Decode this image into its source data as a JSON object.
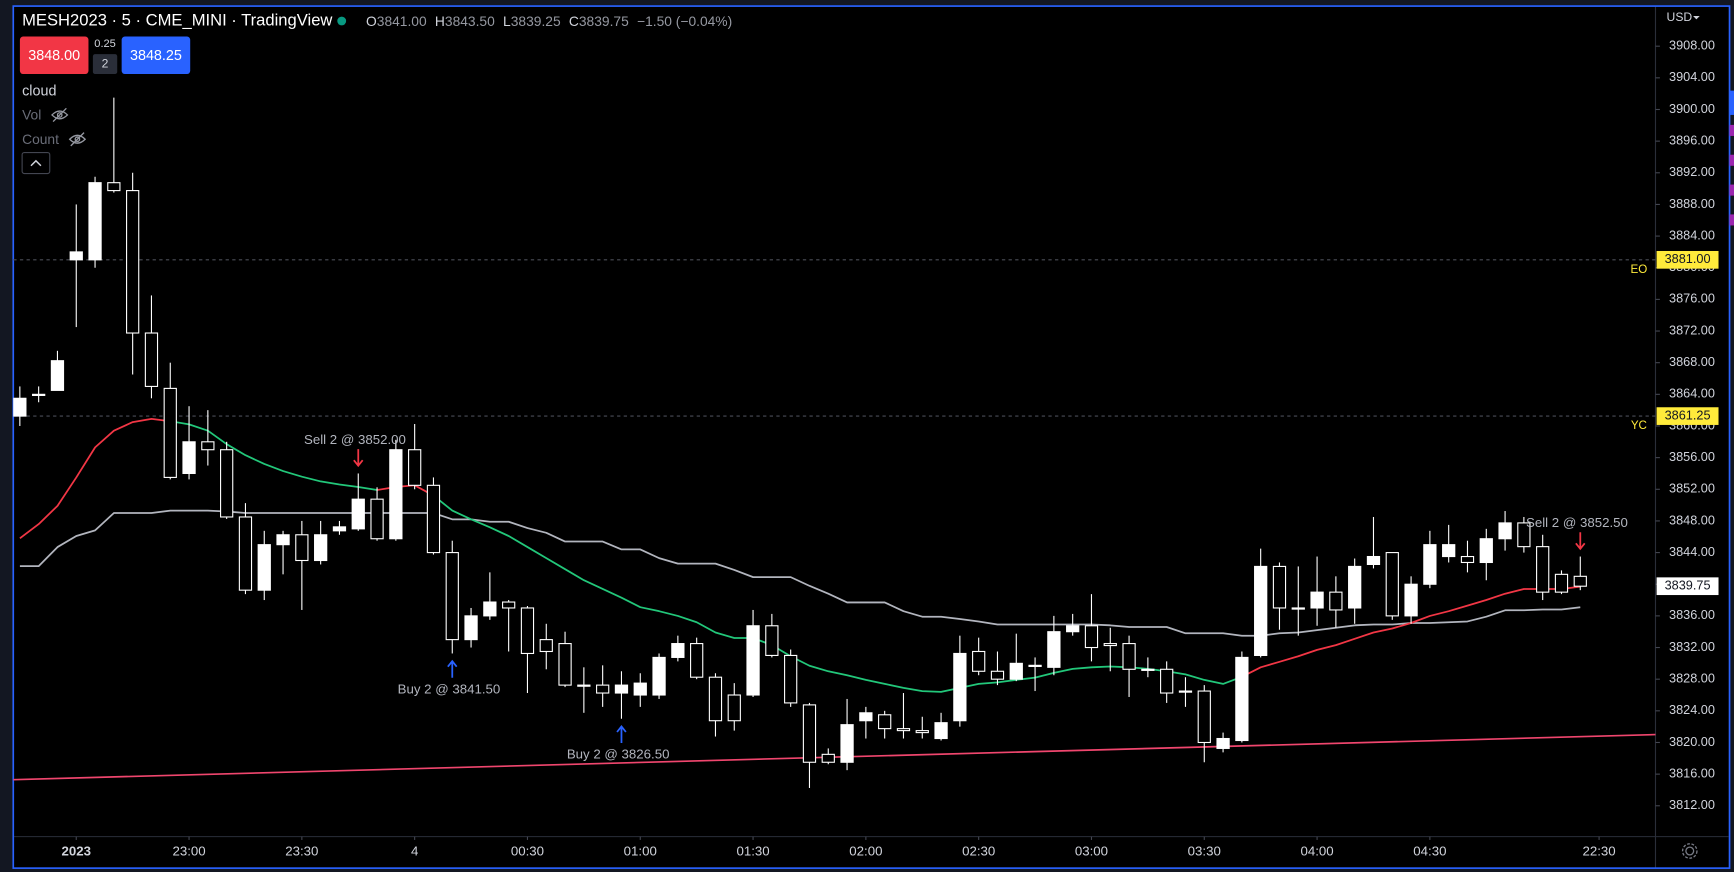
{
  "header": {
    "symbol": "MESH2023 · 5 · CME_MINI · TradingView",
    "ohlc": [
      {
        "key": "O",
        "value": "3841.00"
      },
      {
        "key": "H",
        "value": "3843.50"
      },
      {
        "key": "L",
        "value": "3839.25"
      },
      {
        "key": "C",
        "value": "3839.75"
      }
    ],
    "change": "−1.50 (−0.04%)",
    "bid": "3848.00",
    "spread": "0.25",
    "quantity": "2",
    "ask": "3848.25",
    "currency": "USD"
  },
  "legend": {
    "items": [
      "cloud",
      "Vol",
      "Count"
    ]
  },
  "chart_data": {
    "type": "candlestick",
    "open": [
      3861.25,
      3864,
      3864.5,
      3881,
      3881,
      3890.75,
      3889.75,
      3871.75,
      3864.75,
      3854,
      3858,
      3857,
      3848.5,
      3839.25,
      3845,
      3846.25,
      3843,
      3846.75,
      3847,
      3850.75,
      3845.75,
      3857,
      3852.5,
      3844,
      3833,
      3836,
      3837.75,
      3837,
      3833,
      3832.5,
      3827.25,
      3827.25,
      3826.25,
      3826,
      3826,
      3830.75,
      3832.5,
      3828.25,
      3826,
      3826,
      3834.75,
      3831,
      3824.75,
      3818.5,
      3817.5,
      3822.75,
      3823.5,
      3821.75,
      3821.5,
      3820.5,
      3822.75,
      3831.5,
      3829,
      3828,
      3829.75,
      3829.5,
      3834,
      3834.75,
      3832.5,
      3832.5,
      3829.25,
      3829.25,
      3826.5,
      3826.5,
      3819.25,
      3820.25,
      3831,
      3842.25,
      3837,
      3837,
      3839,
      3837,
      3842.5,
      3844,
      3836,
      3840,
      3843.5,
      3843.5,
      3842.75,
      3845.75,
      3847.75,
      3844.75,
      3841.25,
      3841
    ],
    "high": [
      3865,
      3865,
      3869.5,
      3888,
      3891.5,
      3901.5,
      3892,
      3876.5,
      3868,
      3862.5,
      3862,
      3858,
      3850.25,
      3846.75,
      3846.75,
      3848,
      3848,
      3848,
      3854,
      3852.25,
      3858.25,
      3860.25,
      3853.5,
      3845.5,
      3837,
      3841.5,
      3838,
      3837.25,
      3835,
      3834,
      3829.5,
      3829.75,
      3829,
      3828.75,
      3831.25,
      3833.5,
      3833.25,
      3828.75,
      3827.5,
      3836.75,
      3836.25,
      3831.75,
      3825,
      3819.25,
      3825.5,
      3824.5,
      3824,
      3826.25,
      3823.25,
      3823.75,
      3833.5,
      3833.25,
      3831.5,
      3833.75,
      3830.75,
      3836,
      3836.25,
      3838.75,
      3834.5,
      3833.5,
      3830.75,
      3830.25,
      3828.25,
      3827.25,
      3821.25,
      3831.5,
      3844.5,
      3842.75,
      3842.25,
      3843.5,
      3841,
      3843.25,
      3848.5,
      3844,
      3841,
      3846.75,
      3847.5,
      3845.5,
      3847,
      3849.25,
      3848.5,
      3846.25,
      3841.75,
      3843.5
    ],
    "low": [
      3860,
      3863,
      3864.5,
      3872.5,
      3880,
      3889.5,
      3866.5,
      3863.5,
      3853.25,
      3853.25,
      3855,
      3848.25,
      3838.75,
      3838,
      3841.25,
      3836.75,
      3842.5,
      3846.25,
      3846.75,
      3845.5,
      3845.5,
      3852,
      3843.75,
      3831.25,
      3832,
      3835.5,
      3831.5,
      3826.25,
      3829.25,
      3827,
      3823.75,
      3824.5,
      3823,
      3824.5,
      3825.5,
      3830.25,
      3828,
      3820.75,
      3821.5,
      3825.75,
      3830.75,
      3824.5,
      3814.25,
      3817.25,
      3816.5,
      3820.5,
      3820.5,
      3820.5,
      3820.5,
      3820.25,
      3822,
      3828.5,
      3827.25,
      3827.75,
      3826.5,
      3828.5,
      3833.5,
      3830.25,
      3829,
      3825.75,
      3828.25,
      3825,
      3824.5,
      3817.5,
      3818.75,
      3820,
      3830.75,
      3834.25,
      3833.5,
      3834.75,
      3834.5,
      3835,
      3842,
      3835.5,
      3835,
      3839.5,
      3842.75,
      3841.5,
      3840.5,
      3844.25,
      3844,
      3838,
      3838.75,
      3839.25
    ],
    "close": [
      3863.5,
      3864,
      3868.25,
      3882,
      3890.75,
      3889.75,
      3871.75,
      3865,
      3853.5,
      3858,
      3857,
      3848.5,
      3839.25,
      3845,
      3846.25,
      3843,
      3846.25,
      3847.25,
      3850.75,
      3845.75,
      3857,
      3852.5,
      3844,
      3833,
      3836,
      3837.75,
      3837,
      3831.25,
      3831.5,
      3827.25,
      3827.25,
      3826.25,
      3827.25,
      3827.5,
      3830.75,
      3832.5,
      3828.25,
      3822.75,
      3822.75,
      3834.75,
      3831,
      3825,
      3817.5,
      3817.5,
      3822.25,
      3823.75,
      3821.75,
      3821.5,
      3821.25,
      3822.5,
      3831.25,
      3829,
      3828,
      3830,
      3829.75,
      3834,
      3834.75,
      3832,
      3832.25,
      3829.25,
      3829.25,
      3826.25,
      3826.5,
      3820,
      3820.5,
      3830.75,
      3842.25,
      3837,
      3837,
      3839,
      3836.75,
      3842.25,
      3843.5,
      3836,
      3840,
      3845,
      3845,
      3842.75,
      3845.75,
      3847.75,
      3844.75,
      3839,
      3839,
      3839.75
    ],
    "up_color": "#ffffff",
    "down_color": "#000000",
    "border_color": "#ffffff",
    "lines": [
      {
        "color": "#b2b5be",
        "values": [
          3842.3,
          3842.3,
          3844.7,
          3846.1,
          3846.8,
          3849,
          3849,
          3849,
          3849.3,
          3849.3,
          3849.3,
          3849.2,
          3849,
          3849,
          3849,
          3849,
          3849,
          3849,
          3849,
          3849,
          3849,
          3849,
          3849,
          3848.2,
          3848.2,
          3847.9,
          3847.9,
          3847.1,
          3846.5,
          3845.4,
          3845.4,
          3845.4,
          3844.4,
          3844.4,
          3843.3,
          3842.6,
          3842.6,
          3842.6,
          3841.8,
          3840.9,
          3840.9,
          3840.9,
          3839.8,
          3838.8,
          3837.7,
          3837.7,
          3837.7,
          3836.6,
          3835.9,
          3835.9,
          3835.6,
          3835.3,
          3834.9,
          3834.9,
          3834.9,
          3834.9,
          3834.9,
          3834.9,
          3834.8,
          3834.6,
          3834.6,
          3834.6,
          3833.8,
          3833.8,
          3833.8,
          3833.5,
          3833.5,
          3833.8,
          3833.9,
          3834.2,
          3834.5,
          3834.8,
          3834.9,
          3834.9,
          3835.1,
          3835.1,
          3835.2,
          3835.3,
          3835.9,
          3836.7,
          3836.7,
          3836.8,
          3836.8,
          3837.1
        ]
      },
      {
        "color": "#f23645",
        "values": [
          3845.8,
          3847.6,
          3849.9,
          3853.5,
          3857.3,
          3859.4,
          3860.5,
          3860.9,
          3860.6,
          null,
          null,
          null,
          null,
          null,
          null,
          null,
          null,
          null,
          null,
          3851.9,
          3852.3,
          3852.5,
          3851.2,
          null,
          null,
          null,
          null,
          null,
          null,
          null,
          null,
          null,
          null,
          null,
          null,
          null,
          null,
          null,
          null,
          null,
          null,
          null,
          null,
          null,
          null,
          null,
          null,
          null,
          null,
          null,
          null,
          null,
          null,
          null,
          null,
          null,
          null,
          null,
          null,
          null,
          null,
          null,
          null,
          null,
          null,
          3828.3,
          3829.5,
          3830.2,
          3830.9,
          3831.7,
          3832.3,
          3833.1,
          3833.9,
          3834.4,
          3835.1,
          3836.0,
          3836.6,
          3837.3,
          3838.0,
          3838.8,
          3839.4,
          3839.4,
          3839.4,
          3839.7
        ]
      },
      {
        "color": "#22c77a",
        "values": [
          null,
          null,
          null,
          null,
          null,
          null,
          null,
          null,
          3860.6,
          3860.2,
          3859.4,
          3857.7,
          3856.3,
          3855.2,
          3854.3,
          3853.6,
          3853.0,
          3852.6,
          3852.3,
          3851.9,
          null,
          null,
          3851.2,
          3849.3,
          3848.2,
          3847.2,
          3846.1,
          3844.7,
          3843.3,
          3841.9,
          3840.5,
          3839.4,
          3838.3,
          3837.1,
          3836.6,
          3836.0,
          3835.2,
          3833.9,
          3833.2,
          3833.2,
          3832.3,
          3830.9,
          3829.7,
          3829.0,
          3828.5,
          3827.9,
          3827.4,
          3826.9,
          3826.5,
          3826.4,
          3826.9,
          3827.4,
          3827.6,
          3827.9,
          3828.2,
          3828.8,
          3829.3,
          3829.5,
          3829.6,
          3829.5,
          3829.3,
          3829.0,
          3828.6,
          3827.9,
          3827.4,
          3828.3,
          null,
          null,
          null,
          null,
          null,
          null,
          null,
          null,
          null,
          null,
          null,
          null,
          null,
          null,
          null,
          null,
          null,
          null
        ]
      }
    ],
    "trendline": {
      "color": "#f0466e",
      "values": [
        3815.3,
        3821.0
      ]
    },
    "price_lines": [
      {
        "value": 3881,
        "label": "3881.00",
        "tag": "EO"
      },
      {
        "value": 3861.25,
        "label": "3861.25",
        "tag": "YC"
      }
    ],
    "last_price": {
      "value": 3839.75,
      "label": "3839.75"
    },
    "annotations": [
      {
        "index": 18,
        "text": "Sell 2 @ 3852.00",
        "direction": "down",
        "color": "#f23645"
      },
      {
        "index": 23,
        "text": "Buy 2 @ 3841.50",
        "direction": "up",
        "color": "#2962ff"
      },
      {
        "index": 32,
        "text": "Buy 2 @ 3826.50",
        "direction": "up",
        "color": "#2962ff"
      },
      {
        "index": 83,
        "text": "Sell 2 @ 3852.50",
        "direction": "down",
        "color": "#f23645"
      }
    ],
    "xlim": [
      -0.35,
      87
    ],
    "xticks": [
      {
        "value": 3,
        "label": "2023"
      },
      {
        "value": 9,
        "label": "23:00"
      },
      {
        "value": 15,
        "label": "23:30"
      },
      {
        "value": 21,
        "label": "4"
      },
      {
        "value": 27,
        "label": "00:30"
      },
      {
        "value": 33,
        "label": "01:00"
      },
      {
        "value": 39,
        "label": "01:30"
      },
      {
        "value": 45,
        "label": "02:00"
      },
      {
        "value": 51,
        "label": "02:30"
      },
      {
        "value": 57,
        "label": "03:00"
      },
      {
        "value": 63,
        "label": "03:30"
      },
      {
        "value": 69,
        "label": "04:00"
      },
      {
        "value": 75,
        "label": "04:30"
      },
      {
        "value": 84,
        "label": "22:30"
      }
    ],
    "ylim": [
      3808.1,
      3913.0
    ],
    "yticks": [
      {
        "value": 3812,
        "label": "3812.00"
      },
      {
        "value": 3816,
        "label": "3816.00"
      },
      {
        "value": 3820,
        "label": "3820.00"
      },
      {
        "value": 3824,
        "label": "3824.00"
      },
      {
        "value": 3828,
        "label": "3828.00"
      },
      {
        "value": 3832,
        "label": "3832.00"
      },
      {
        "value": 3836,
        "label": "3836.00"
      },
      {
        "value": 3840,
        "label": "3840.00"
      },
      {
        "value": 3844,
        "label": "3844.00"
      },
      {
        "value": 3848,
        "label": "3848.00"
      },
      {
        "value": 3852,
        "label": "3852.00"
      },
      {
        "value": 3856,
        "label": "3856.00"
      },
      {
        "value": 3860,
        "label": "3860.00"
      },
      {
        "value": 3864,
        "label": "3864.00"
      },
      {
        "value": 3868,
        "label": "3868.00"
      },
      {
        "value": 3872,
        "label": "3872.00"
      },
      {
        "value": 3876,
        "label": "3876.00"
      },
      {
        "value": 3880,
        "label": "3880.00"
      },
      {
        "value": 3884,
        "label": "3884.00"
      },
      {
        "value": 3888,
        "label": "3888.00"
      },
      {
        "value": 3892,
        "label": "3892.00"
      },
      {
        "value": 3896,
        "label": "3896.00"
      },
      {
        "value": 3900,
        "label": "3900.00"
      },
      {
        "value": 3904,
        "label": "3904.00"
      },
      {
        "value": 3908,
        "label": "3908.00"
      }
    ],
    "grid": false
  }
}
